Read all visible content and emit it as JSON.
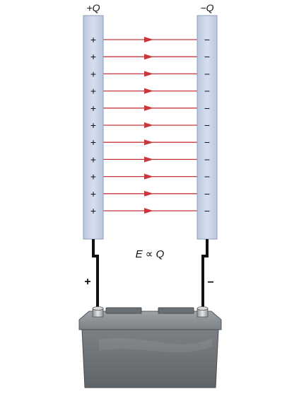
{
  "labels": {
    "left_plate_charge": "+Q",
    "right_plate_charge": "−Q",
    "relation": "E ∝ Q",
    "battery_positive": "+",
    "battery_negative": "−"
  },
  "plate_symbols": {
    "left": [
      "+",
      "+",
      "+",
      "+",
      "+",
      "+",
      "+",
      "+",
      "+",
      "+",
      "+"
    ],
    "right": [
      "−",
      "−",
      "−",
      "−",
      "−",
      "−",
      "−",
      "−",
      "−",
      "−",
      "−"
    ]
  },
  "colors": {
    "plate_fill": "#c7d3e6",
    "plate_stroke": "#8e9db8",
    "field_line": "#c8373d",
    "wire": "#111111",
    "battery_body": "#6f7478",
    "battery_top": "#8a8f93",
    "text": "#111111"
  }
}
